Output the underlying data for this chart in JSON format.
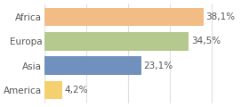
{
  "categories": [
    "Africa",
    "Europa",
    "Asia",
    "America"
  ],
  "values": [
    38.1,
    34.5,
    23.1,
    4.2
  ],
  "labels": [
    "38,1%",
    "34,5%",
    "23,1%",
    "4,2%"
  ],
  "bar_colors": [
    "#f2bc86",
    "#b5c98e",
    "#7090be",
    "#f5d070"
  ],
  "background_color": "#ffffff",
  "xlim": [
    0,
    48
  ],
  "bar_height": 0.75,
  "label_fontsize": 7.5,
  "ytick_fontsize": 7.5,
  "grid_color": "#e0e0e0",
  "text_color": "#555555"
}
